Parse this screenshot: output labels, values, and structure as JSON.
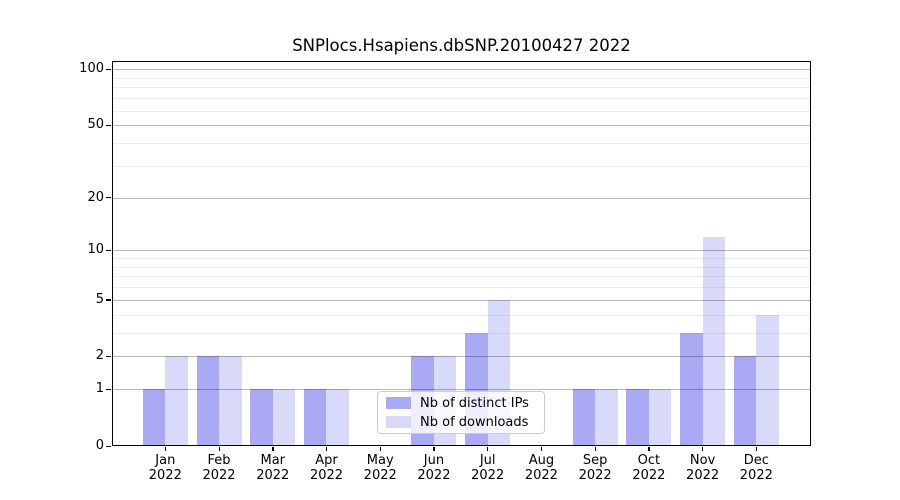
{
  "chart_data": {
    "type": "bar",
    "title": "SNPlocs.Hsapiens.dbSNP.20100427 2022",
    "categories": [
      "Jan",
      "Feb",
      "Mar",
      "Apr",
      "May",
      "Jun",
      "Jul",
      "Aug",
      "Sep",
      "Oct",
      "Nov",
      "Dec"
    ],
    "category_year": "2022",
    "series": [
      {
        "name": "Nb of distinct IPs",
        "key": "distinct-ips",
        "color": "#a9a9f4",
        "values": [
          1,
          2,
          1,
          1,
          0,
          2,
          3,
          0,
          1,
          1,
          3,
          2
        ]
      },
      {
        "name": "Nb of downloads",
        "key": "downloads",
        "color": "#d9d9fa",
        "values": [
          2,
          2,
          1,
          1,
          0,
          2,
          5,
          0,
          1,
          1,
          12,
          4
        ]
      }
    ],
    "yscale": "log1p",
    "ylim": [
      0,
      110
    ],
    "y_major_ticks": [
      0,
      1,
      2,
      5,
      10,
      20,
      50,
      100
    ],
    "y_minor_gridlines": [
      3,
      4,
      6,
      7,
      8,
      9,
      30,
      40,
      60,
      70,
      80,
      90
    ],
    "grid": "horizontal",
    "legend_position": "inside-lower-center"
  }
}
